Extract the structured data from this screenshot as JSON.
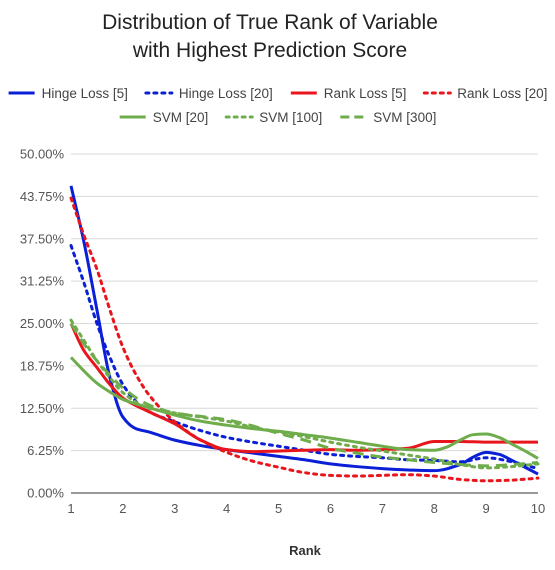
{
  "chart_data": {
    "type": "line",
    "title_lines": [
      "Distribution of True Rank of Variable",
      "with Highest Prediction Score"
    ],
    "xlabel": "Rank",
    "ylabel": "",
    "xlim": [
      1,
      10
    ],
    "ylim": [
      0,
      50
    ],
    "x_ticks": [
      1,
      2,
      3,
      4,
      5,
      6,
      7,
      8,
      9,
      10
    ],
    "x_tick_labels": [
      "1",
      "2",
      "3",
      "4",
      "5",
      "6",
      "7",
      "8",
      "9",
      "10"
    ],
    "y_ticks": [
      0,
      6.25,
      12.5,
      18.75,
      25,
      31.25,
      37.5,
      43.75,
      50
    ],
    "y_tick_labels": [
      "0.00%",
      "6.25%",
      "12.50%",
      "18.75%",
      "25.00%",
      "31.25%",
      "37.50%",
      "43.75%",
      "50.00%"
    ],
    "grid": true,
    "legend_position": "top",
    "series": [
      {
        "name": "Hinge Loss [5]",
        "color": "#0a1fd6",
        "dash": "solid",
        "x": [
          1,
          1.25,
          1.5,
          1.75,
          2,
          2.25,
          2.5,
          3,
          3.5,
          4,
          4.5,
          5,
          5.5,
          6,
          6.5,
          7,
          7.5,
          8,
          8.5,
          8.75,
          9,
          9.25,
          9.5,
          9.75,
          10
        ],
        "y": [
          45.3,
          37,
          27,
          17,
          11.2,
          9.5,
          9,
          7.8,
          7,
          6.4,
          5.9,
          5.4,
          4.9,
          4.3,
          3.9,
          3.6,
          3.4,
          3.3,
          4.2,
          5.3,
          6,
          5.7,
          4.8,
          3.8,
          2.8
        ]
      },
      {
        "name": "Hinge Loss [20]",
        "color": "#0a1fd6",
        "dash": "dot",
        "x": [
          1,
          1.25,
          1.5,
          1.75,
          2,
          2.25,
          2.5,
          3,
          3.5,
          4,
          4.5,
          5,
          5.5,
          6,
          6.5,
          7,
          7.5,
          8,
          8.5,
          9,
          9.5,
          10
        ],
        "y": [
          36.5,
          31,
          25,
          20,
          16,
          13.5,
          12,
          10.5,
          9.2,
          8.2,
          7.5,
          6.9,
          6.3,
          5.7,
          5.4,
          5.2,
          4.9,
          4.8,
          4.6,
          5.2,
          4.6,
          3.6
        ]
      },
      {
        "name": "Rank Loss [5]",
        "color": "#e8161c",
        "dash": "solid",
        "x": [
          1,
          1.25,
          1.5,
          1.75,
          2,
          2.5,
          3,
          3.5,
          4,
          4.5,
          5,
          5.5,
          6,
          6.5,
          7,
          7.5,
          8,
          8.5,
          9,
          9.5,
          10
        ],
        "y": [
          25,
          21,
          18.5,
          16,
          14,
          12,
          10.2,
          7.8,
          6.4,
          6.1,
          6.2,
          6.3,
          6.4,
          6.3,
          6.4,
          6.6,
          7.6,
          7.6,
          7.5,
          7.5,
          7.5
        ]
      },
      {
        "name": "Rank Loss [20]",
        "color": "#e8161c",
        "dash": "dot",
        "x": [
          1,
          1.25,
          1.5,
          1.75,
          2,
          2.25,
          2.5,
          3,
          3.5,
          4,
          4.5,
          5,
          5.5,
          6,
          6.5,
          7,
          7.5,
          8,
          8.5,
          9,
          9.5,
          10
        ],
        "y": [
          43.5,
          38,
          33,
          27,
          21.5,
          17.5,
          14.5,
          10.5,
          7.8,
          6,
          4.7,
          3.8,
          3,
          2.6,
          2.5,
          2.6,
          2.7,
          2.5,
          2,
          1.8,
          1.9,
          2.2
        ]
      },
      {
        "name": "SVM [20]",
        "color": "#6fac4c",
        "dash": "solid",
        "x": [
          1,
          1.25,
          1.5,
          1.75,
          2,
          2.5,
          3,
          3.5,
          4,
          4.5,
          5,
          5.5,
          6,
          6.5,
          7,
          7.5,
          8,
          8.25,
          8.5,
          8.75,
          9,
          9.25,
          9.5,
          9.75,
          10
        ],
        "y": [
          20,
          18,
          16.2,
          14.9,
          13.8,
          12.6,
          11.5,
          10.6,
          10,
          9.5,
          9.1,
          8.6,
          8.1,
          7.5,
          6.9,
          6.4,
          6.3,
          6.8,
          7.8,
          8.6,
          8.7,
          8.2,
          7.2,
          6.2,
          5.1
        ]
      },
      {
        "name": "SVM [100]",
        "color": "#6fac4c",
        "dash": "dot",
        "x": [
          1,
          1.25,
          1.5,
          1.75,
          2,
          2.5,
          3,
          3.5,
          4,
          4.5,
          5,
          5.5,
          6,
          6.5,
          7,
          7.5,
          8,
          8.5,
          9,
          9.5,
          10
        ],
        "y": [
          25.5,
          22.5,
          19.5,
          17,
          14.8,
          12.5,
          11.8,
          11.2,
          10.6,
          9.7,
          9,
          8.3,
          7.5,
          6.8,
          6.2,
          5.6,
          5,
          4.2,
          3.7,
          3.9,
          4.3
        ]
      },
      {
        "name": "SVM [300]",
        "color": "#6fac4c",
        "dash": "dash",
        "x": [
          1,
          1.25,
          1.5,
          1.75,
          2,
          2.5,
          3,
          3.5,
          4,
          4.5,
          5,
          5.5,
          6,
          6.5,
          7,
          7.5,
          8,
          8.5,
          9,
          9.5,
          10
        ],
        "y": [
          25,
          22,
          19.5,
          17.4,
          15.5,
          13,
          11.8,
          11.3,
          10.8,
          9.9,
          8.8,
          7.8,
          6.6,
          5.9,
          5.3,
          4.9,
          4.5,
          4.2,
          4,
          4.2,
          4.5
        ]
      }
    ]
  }
}
